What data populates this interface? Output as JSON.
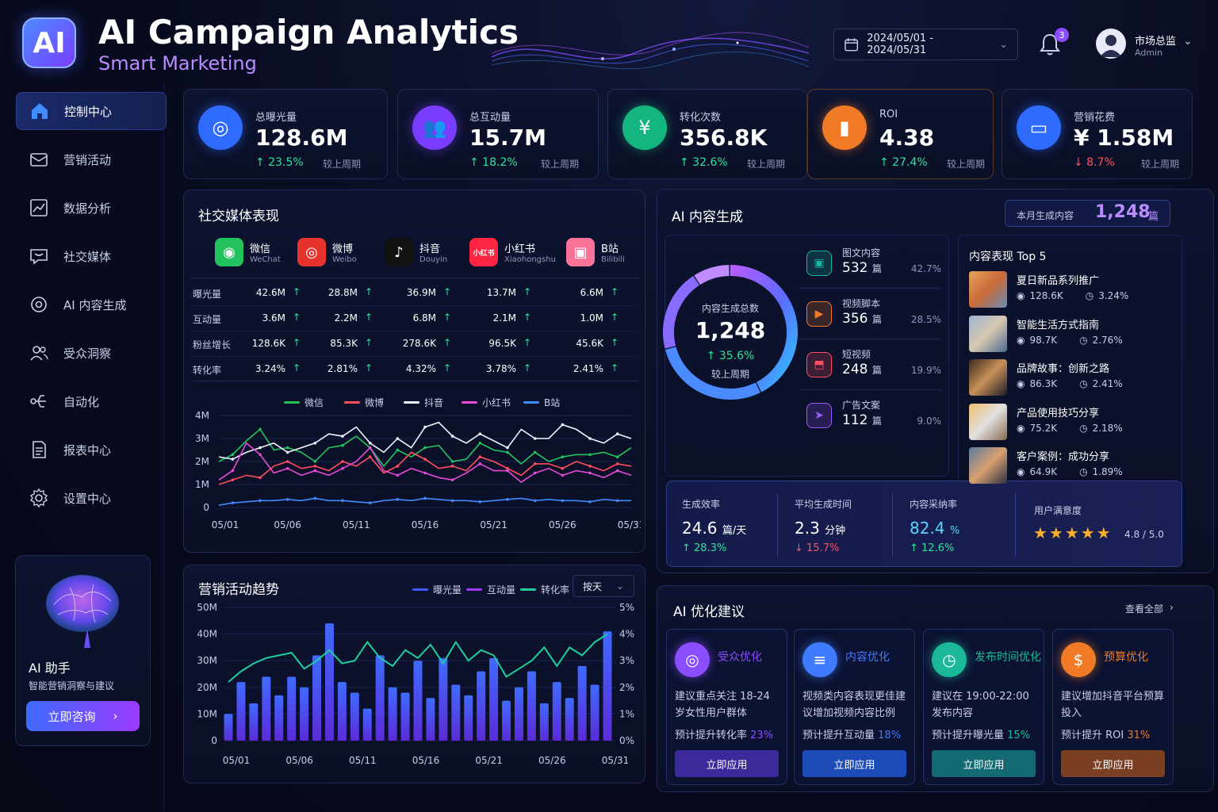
{
  "header": {
    "logo": "AI",
    "title": "AI Campaign Analytics",
    "subtitle": "Smart Marketing",
    "date_range": "2024/05/01 - 2024/05/31",
    "notifications": "3",
    "user_name": "市场总监",
    "user_role": "Admin"
  },
  "sidebar": {
    "items": [
      {
        "label": "控制中心",
        "icon": "home-icon"
      },
      {
        "label": "营销活动",
        "icon": "mail-icon"
      },
      {
        "label": "数据分析",
        "icon": "chart-icon"
      },
      {
        "label": "社交媒体",
        "icon": "chat-icon"
      },
      {
        "label": "AI 内容生成",
        "icon": "ai-icon"
      },
      {
        "label": "受众洞察",
        "icon": "users-icon"
      },
      {
        "label": "自动化",
        "icon": "flow-icon"
      },
      {
        "label": "报表中心",
        "icon": "report-icon"
      },
      {
        "label": "设置中心",
        "icon": "gear-icon"
      }
    ],
    "assistant": {
      "title": "AI 助手",
      "desc": "智能营销洞察与建议",
      "button": "立即咨询"
    }
  },
  "kpis": [
    {
      "label": "总曝光量",
      "value": "128.6M",
      "change": "↑ 23.5%",
      "dir": "up",
      "prev": "较上周期",
      "color": "#2f6bff",
      "icon": "target-icon"
    },
    {
      "label": "总互动量",
      "value": "15.7M",
      "change": "↑ 18.2%",
      "dir": "up",
      "prev": "较上周期",
      "color": "#7a3dff",
      "icon": "users-icon"
    },
    {
      "label": "转化次数",
      "value": "356.8K",
      "change": "↑ 32.6%",
      "dir": "up",
      "prev": "较上周期",
      "color": "#15b57f",
      "icon": "yen-icon"
    },
    {
      "label": "ROI",
      "value": "4.38",
      "change": "↑ 27.4%",
      "dir": "up",
      "prev": "较上周期",
      "color": "#f07a25",
      "icon": "bar-chart-icon"
    },
    {
      "label": "营销花费",
      "value": "¥ 1.58M",
      "change": "↓ 8.7%",
      "dir": "down",
      "prev": "较上周期",
      "color": "#2f6bff",
      "icon": "wallet-icon"
    }
  ],
  "social": {
    "title": "社交媒体表现",
    "platforms": [
      {
        "name": "微信",
        "en": "WeChat",
        "color": "#22c35e",
        "glyph": "◉"
      },
      {
        "name": "微博",
        "en": "Weibo",
        "color": "#e8332d",
        "glyph": "◎"
      },
      {
        "name": "抖音",
        "en": "Douyin",
        "color": "#111111",
        "glyph": "♪"
      },
      {
        "name": "小红书",
        "en": "Xiaohongshu",
        "color": "#ff2442",
        "glyph": "小红书"
      },
      {
        "name": "B站",
        "en": "Bilibili",
        "color": "#fb7299",
        "glyph": "▣"
      }
    ],
    "rows": [
      {
        "label": "曝光量",
        "values": [
          "42.6M",
          "28.8M",
          "36.9M",
          "13.7M",
          "6.6M"
        ]
      },
      {
        "label": "互动量",
        "values": [
          "3.6M",
          "2.2M",
          "6.8M",
          "2.1M",
          "1.0M"
        ]
      },
      {
        "label": "粉丝增长",
        "values": [
          "128.6K",
          "85.3K",
          "278.6K",
          "96.5K",
          "45.6K"
        ]
      },
      {
        "label": "转化率",
        "values": [
          "3.24%",
          "2.81%",
          "4.32%",
          "3.78%",
          "2.41%"
        ]
      }
    ]
  },
  "campaign": {
    "title": "营销活动趋势",
    "legend": [
      "曝光量",
      "互动量",
      "转化率"
    ],
    "select": "按天"
  },
  "ai_content": {
    "title": "AI 内容生成",
    "month_label": "本月生成内容",
    "month_value": "1,248",
    "month_unit": "篇",
    "donut_label": "内容生成总数",
    "donut_value": "1,248",
    "donut_change": "↑ 35.6%",
    "donut_prev": "较上周期",
    "types": [
      {
        "name": "图文内容",
        "value": "532",
        "unit": "篇",
        "pct": "42.7%",
        "color": "#16b8a0",
        "icon": "image-icon"
      },
      {
        "name": "视频脚本",
        "value": "356",
        "unit": "篇",
        "pct": "28.5%",
        "color": "#f07a25",
        "icon": "video-icon"
      },
      {
        "name": "短视频",
        "value": "248",
        "unit": "篇",
        "pct": "19.9%",
        "color": "#ff4f5e",
        "icon": "clip-icon"
      },
      {
        "name": "广告文案",
        "value": "112",
        "unit": "篇",
        "pct": "9.0%",
        "color": "#9b5bff",
        "icon": "send-icon"
      }
    ],
    "top5_title": "内容表现 Top 5",
    "top5": [
      {
        "title": "夏日新品系列推广",
        "views": "128.6K",
        "rate": "3.24%"
      },
      {
        "title": "智能生活方式指南",
        "views": "98.7K",
        "rate": "2.76%"
      },
      {
        "title": "品牌故事：创新之路",
        "views": "86.3K",
        "rate": "2.41%"
      },
      {
        "title": "产品使用技巧分享",
        "views": "75.2K",
        "rate": "2.18%"
      },
      {
        "title": "客户案例：成功分享",
        "views": "64.9K",
        "rate": "1.89%"
      }
    ],
    "stats": [
      {
        "label": "生成效率",
        "value": "24.6",
        "unit": "篇/天",
        "change": "↑ 28.3%",
        "dir": "up"
      },
      {
        "label": "平均生成时间",
        "value": "2.3",
        "unit": "分钟",
        "change": "↓ 15.7%",
        "dir": "down"
      },
      {
        "label": "内容采纳率",
        "value": "82.4",
        "unit": "%",
        "change": "↑ 12.6%",
        "dir": "up"
      }
    ],
    "satisfaction_label": "用户满意度",
    "satisfaction_value": "4.8 / 5.0",
    "stars": "★★★★★"
  },
  "suggestions": {
    "title": "AI 优化建议",
    "view_all": "查看全部",
    "items": [
      {
        "title": "受众优化",
        "desc": "建议重点关注 18-24 岁女性用户群体",
        "pred": "预计提升转化率",
        "pct": "23%",
        "button": "立即应用",
        "color": "#8a4dff",
        "btn": "#3b2a9a",
        "icon": "target-icon"
      },
      {
        "title": "内容优化",
        "desc": "视频类内容表现更佳建议增加视频内容比例",
        "pred": "预计提升互动量",
        "pct": "18%",
        "button": "立即应用",
        "color": "#3f7bff",
        "btn": "#1d4bb8",
        "icon": "list-icon"
      },
      {
        "title": "发布时间优化",
        "desc": "建议在 19:00-22:00 发布内容",
        "pred": "预计提升曝光量",
        "pct": "15%",
        "button": "立即应用",
        "color": "#1bb89a",
        "btn": "#146a72",
        "icon": "clock-icon"
      },
      {
        "title": "预算优化",
        "desc": "建议增加抖音平台预算投入",
        "pred": "预计提升 ROI",
        "pct": "31%",
        "button": "立即应用",
        "color": "#f07a25",
        "btn": "#7a3f22",
        "icon": "dollar-icon"
      }
    ]
  },
  "chart_data": [
    {
      "type": "line",
      "x": [
        "05/01",
        "05/02",
        "05/03",
        "05/04",
        "05/05",
        "05/06",
        "05/07",
        "05/08",
        "05/09",
        "05/10",
        "05/11",
        "05/12",
        "05/13",
        "05/14",
        "05/15",
        "05/16",
        "05/17",
        "05/18",
        "05/19",
        "05/20",
        "05/21",
        "05/22",
        "05/23",
        "05/24",
        "05/25",
        "05/26",
        "05/27",
        "05/28",
        "05/29",
        "05/30",
        "05/31"
      ],
      "x_ticks": [
        "05/01",
        "05/06",
        "05/11",
        "05/16",
        "05/21",
        "05/26",
        "05/31"
      ],
      "y_ticks": [
        "4M",
        "3M",
        "2M",
        "1M",
        "0"
      ],
      "ylim": [
        0,
        4
      ],
      "series": [
        {
          "name": "微信",
          "color": "#22c35e",
          "values": [
            2.0,
            2.3,
            2.9,
            3.4,
            2.5,
            2.6,
            2.4,
            2.0,
            2.6,
            2.7,
            3.1,
            2.6,
            1.8,
            2.5,
            2.2,
            2.6,
            2.7,
            2.0,
            2.1,
            2.8,
            2.5,
            2.4,
            1.9,
            2.4,
            2.0,
            2.2,
            2.3,
            2.3,
            2.4,
            2.2,
            2.6
          ]
        },
        {
          "name": "微博",
          "color": "#ff4f5e",
          "values": [
            1.0,
            1.2,
            1.4,
            1.3,
            1.8,
            2.0,
            1.7,
            1.8,
            1.6,
            2.0,
            1.8,
            2.2,
            1.5,
            1.8,
            2.4,
            2.1,
            1.7,
            1.8,
            1.6,
            2.2,
            2.0,
            1.7,
            1.4,
            1.9,
            1.9,
            1.7,
            2.0,
            1.8,
            1.6,
            1.9,
            1.8
          ]
        },
        {
          "name": "抖音",
          "color": "#f0f2ff",
          "values": [
            2.2,
            2.1,
            2.4,
            2.6,
            2.8,
            2.4,
            2.6,
            2.8,
            3.2,
            3.1,
            3.5,
            2.8,
            2.4,
            3.0,
            2.6,
            3.5,
            3.7,
            3.1,
            2.8,
            3.2,
            2.9,
            2.6,
            3.4,
            3.0,
            3.0,
            3.6,
            3.4,
            3.0,
            2.8,
            3.2,
            3.0
          ]
        },
        {
          "name": "小红书",
          "color": "#e64bd6",
          "values": [
            1.2,
            1.6,
            2.8,
            2.3,
            1.5,
            1.7,
            1.4,
            1.6,
            1.4,
            1.7,
            2.0,
            2.6,
            1.6,
            1.4,
            1.7,
            1.5,
            1.3,
            1.2,
            1.5,
            1.9,
            1.6,
            1.6,
            1.1,
            1.5,
            1.7,
            1.4,
            1.6,
            1.5,
            1.3,
            1.6,
            1.4
          ]
        },
        {
          "name": "B站",
          "color": "#3f8bff",
          "values": [
            0.1,
            0.2,
            0.25,
            0.3,
            0.3,
            0.35,
            0.3,
            0.4,
            0.3,
            0.3,
            0.25,
            0.2,
            0.3,
            0.35,
            0.3,
            0.4,
            0.35,
            0.3,
            0.3,
            0.25,
            0.3,
            0.35,
            0.4,
            0.3,
            0.35,
            0.3,
            0.3,
            0.25,
            0.35,
            0.3,
            0.3
          ]
        }
      ]
    },
    {
      "type": "bar",
      "x": [
        "05/01",
        "05/02",
        "05/03",
        "05/04",
        "05/05",
        "05/06",
        "05/07",
        "05/08",
        "05/09",
        "05/10",
        "05/11",
        "05/12",
        "05/13",
        "05/14",
        "05/15",
        "05/16",
        "05/17",
        "05/18",
        "05/19",
        "05/20",
        "05/21",
        "05/22",
        "05/23",
        "05/24",
        "05/25",
        "05/26",
        "05/27",
        "05/28",
        "05/29",
        "05/30",
        "05/31"
      ],
      "x_ticks": [
        "05/01",
        "05/06",
        "05/11",
        "05/16",
        "05/21",
        "05/26",
        "05/31"
      ],
      "y_ticks": [
        "50M",
        "40M",
        "30M",
        "20M",
        "10M",
        "0"
      ],
      "y2_ticks": [
        "5%",
        "4%",
        "3%",
        "2%",
        "1%",
        "0%"
      ],
      "ylim": [
        0,
        50
      ],
      "y2lim": [
        0,
        5
      ],
      "series": [
        {
          "name": "曝光量",
          "color": "#3f5bff",
          "values": [
            10,
            22,
            14,
            24,
            17,
            24,
            20,
            32,
            44,
            22,
            18,
            12,
            32,
            20,
            18,
            30,
            16,
            31,
            21,
            17,
            26,
            31,
            15,
            20,
            26,
            14,
            22,
            16,
            28,
            21,
            41
          ]
        },
        {
          "name": "转化率",
          "color": "#1ecf9c",
          "values": [
            2.2,
            2.6,
            2.9,
            3.1,
            3.2,
            3.3,
            2.7,
            3.0,
            3.4,
            2.9,
            3.0,
            3.7,
            3.1,
            2.8,
            3.4,
            3.1,
            3.6,
            2.9,
            3.7,
            3.0,
            3.4,
            3.2,
            2.4,
            2.7,
            3.0,
            3.5,
            2.8,
            3.5,
            3.2,
            3.7,
            4.0
          ]
        }
      ]
    },
    {
      "type": "pie",
      "categories": [
        "图文内容",
        "视频脚本",
        "短视频",
        "广告文案"
      ],
      "values": [
        42.7,
        28.5,
        19.9,
        9.0
      ]
    }
  ]
}
